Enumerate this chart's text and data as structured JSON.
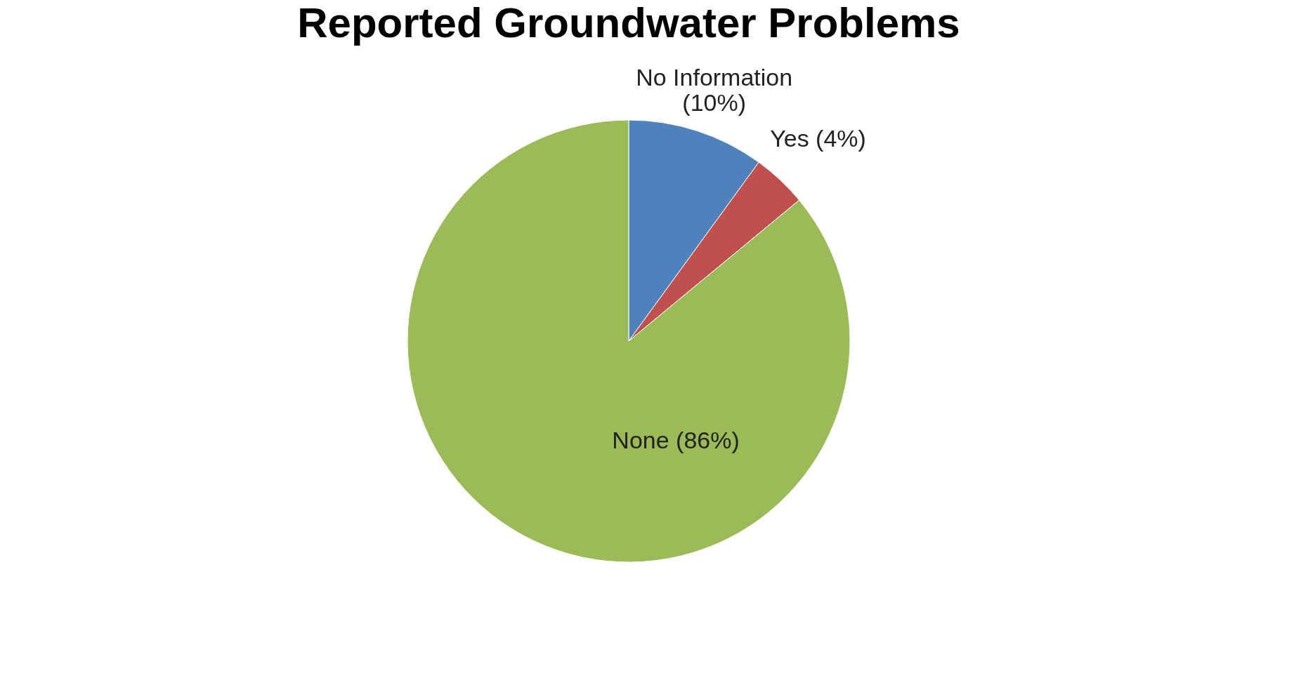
{
  "chart_data": {
    "type": "pie",
    "title": "Reported Groundwater Problems",
    "categories": [
      "No Information",
      "Yes",
      "None"
    ],
    "values": [
      10,
      4,
      86
    ],
    "value_labels": [
      "(10%)",
      "(4%)",
      "(86%)"
    ],
    "colors": [
      "#4f81bd",
      "#c0504d",
      "#9bbb59"
    ],
    "legend": false
  }
}
